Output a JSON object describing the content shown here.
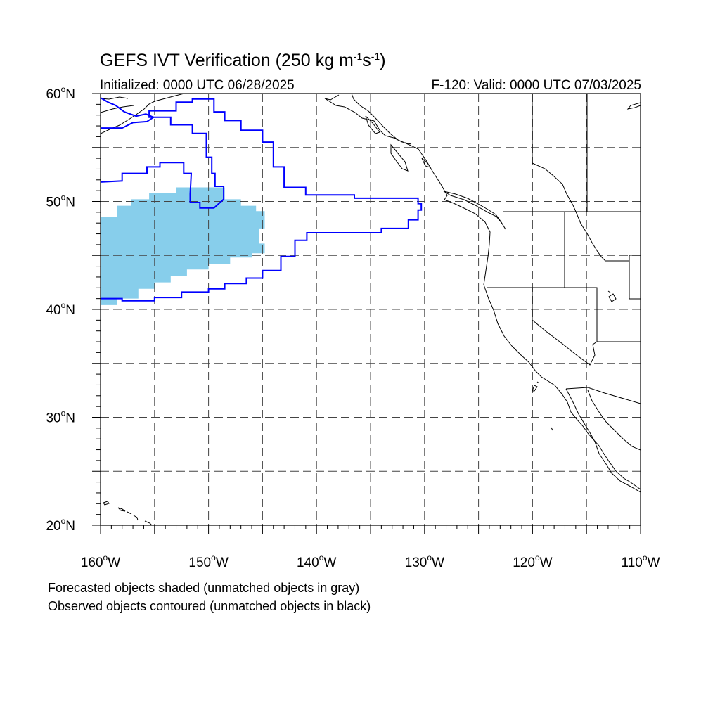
{
  "title": {
    "main": "GEFS IVT Verification (250 kg m",
    "exp1": "-1",
    "mid": "s",
    "exp2": "-1",
    "end": ")"
  },
  "initialized": "Initialized: 0000 UTC 06/28/2025",
  "valid": "F-120: Valid: 0000 UTC 07/03/2025",
  "notes": {
    "forecast": "Forecasted objects shaded (unmatched objects in gray)",
    "observed": "Observed objects contoured (unmatched objects in black)"
  },
  "axes": {
    "lon_labels": [
      "160",
      "150",
      "140",
      "130",
      "120",
      "110"
    ],
    "lon_values": [
      -160,
      -150,
      -140,
      -130,
      -120,
      -110
    ],
    "lon_suffix": "W",
    "lat_labels": [
      "60",
      "50",
      "40",
      "30",
      "20"
    ],
    "lat_values": [
      60,
      50,
      40,
      30,
      20
    ],
    "lat_suffix": "N",
    "degree": "o",
    "lon_range": [
      -160,
      -110
    ],
    "lat_range": [
      20,
      60
    ],
    "grid_lon": [
      -155,
      -150,
      -145,
      -140,
      -135,
      -130,
      -125,
      -120,
      -115
    ],
    "grid_lat": [
      55,
      50,
      45,
      40,
      35,
      30,
      25
    ]
  },
  "colors": {
    "forecast_fill": "#87ceeb",
    "observed_contour": "#0000ff",
    "coastline": "#000000"
  },
  "objects": {
    "forecast_shaded": [
      [
        -160,
        40.4
      ],
      [
        -158.5,
        40.4
      ],
      [
        -158.5,
        41
      ],
      [
        -156.5,
        41
      ],
      [
        -156.5,
        41.9
      ],
      [
        -155,
        41.9
      ],
      [
        -155,
        42.5
      ],
      [
        -153.5,
        42.5
      ],
      [
        -153.5,
        43.1
      ],
      [
        -152,
        43.1
      ],
      [
        -152,
        43.7
      ],
      [
        -150,
        43.7
      ],
      [
        -150,
        44.2
      ],
      [
        -148,
        44.2
      ],
      [
        -148,
        44.8
      ],
      [
        -146,
        44.8
      ],
      [
        -146,
        45.2
      ],
      [
        -144.8,
        45.2
      ],
      [
        -144.8,
        46.1
      ],
      [
        -145.3,
        46.1
      ],
      [
        -145.3,
        47.5
      ],
      [
        -144.8,
        47.5
      ],
      [
        -144.8,
        49.1
      ],
      [
        -145.6,
        49.1
      ],
      [
        -145.6,
        49.6
      ],
      [
        -147,
        49.6
      ],
      [
        -147,
        50.2
      ],
      [
        -148.5,
        50.2
      ],
      [
        -148.5,
        51.3
      ],
      [
        -153,
        51.3
      ],
      [
        -153,
        50.8
      ],
      [
        -155.5,
        50.8
      ],
      [
        -155.5,
        50.2
      ],
      [
        -157.2,
        50.2
      ],
      [
        -157.2,
        49.6
      ],
      [
        -158.5,
        49.6
      ],
      [
        -158.5,
        48.6
      ],
      [
        -160,
        48.6
      ]
    ],
    "observed_contours": [
      [
        [
          -160,
          41
        ],
        [
          -158,
          41
        ],
        [
          -158,
          40.8
        ],
        [
          -155,
          40.8
        ],
        [
          -155,
          41.1
        ],
        [
          -152.5,
          41.1
        ],
        [
          -152.5,
          41.6
        ],
        [
          -150,
          41.6
        ],
        [
          -150,
          41.9
        ],
        [
          -148.5,
          41.9
        ],
        [
          -148.5,
          42.4
        ],
        [
          -146.5,
          42.4
        ],
        [
          -146.5,
          42.9
        ],
        [
          -145,
          42.9
        ],
        [
          -145,
          43.6
        ],
        [
          -143.3,
          43.6
        ],
        [
          -143.3,
          44.9
        ],
        [
          -142,
          44.9
        ],
        [
          -142,
          46.4
        ],
        [
          -140.9,
          46.4
        ],
        [
          -140.9,
          47.1
        ],
        [
          -134,
          47.1
        ],
        [
          -134,
          47.5
        ],
        [
          -131.5,
          47.5
        ],
        [
          -131.5,
          48.3
        ],
        [
          -130.6,
          48.3
        ],
        [
          -130.6,
          49.2
        ],
        [
          -130.3,
          49.2
        ],
        [
          -130.3,
          49.8
        ],
        [
          -130.6,
          49.8
        ],
        [
          -130.6,
          50.3
        ],
        [
          -136.5,
          50.3
        ],
        [
          -136.5,
          50.6
        ],
        [
          -141,
          50.6
        ],
        [
          -141,
          51.3
        ],
        [
          -143,
          51.3
        ],
        [
          -143,
          53.2
        ],
        [
          -144,
          53.2
        ],
        [
          -144,
          55.5
        ],
        [
          -145,
          55.5
        ],
        [
          -145,
          56.6
        ],
        [
          -147,
          56.6
        ],
        [
          -147,
          57.5
        ],
        [
          -148.5,
          57.5
        ],
        [
          -148.5,
          58.3
        ],
        [
          -149.5,
          58.3
        ],
        [
          -149.5,
          59.5
        ],
        [
          -151.5,
          59.5
        ],
        [
          -151.5,
          59.2
        ],
        [
          -153,
          59.2
        ],
        [
          -153,
          58.4
        ],
        [
          -155.5,
          58.4
        ],
        [
          -155.5,
          57.8
        ],
        [
          -153.5,
          57.8
        ],
        [
          -153.5,
          57.1
        ],
        [
          -151.5,
          57.1
        ],
        [
          -151.5,
          56.3
        ],
        [
          -150.2,
          56.3
        ],
        [
          -150.2,
          54.1
        ],
        [
          -149.7,
          54.1
        ],
        [
          -149.7,
          52.6
        ],
        [
          -149.4,
          52.6
        ],
        [
          -149.4,
          51.4
        ],
        [
          -148.6,
          51.4
        ],
        [
          -148.6,
          50.2
        ],
        [
          -149.5,
          49.4
        ],
        [
          -150.8,
          49.4
        ],
        [
          -150.8,
          49.9
        ],
        [
          -151.7,
          49.9
        ],
        [
          -151.7,
          50.7
        ],
        [
          -151.6,
          52.6
        ],
        [
          -152.3,
          52.6
        ],
        [
          -152.3,
          53.6
        ],
        [
          -154.5,
          53.6
        ],
        [
          -154.5,
          53.2
        ],
        [
          -155.7,
          53.2
        ],
        [
          -155.7,
          52.6
        ],
        [
          -158,
          52.6
        ],
        [
          -158,
          51.9
        ],
        [
          -160,
          51.8
        ]
      ],
      [
        [
          -160,
          56.8
        ],
        [
          -158,
          56.8
        ],
        [
          -157,
          57.3
        ],
        [
          -155.7,
          57.4
        ],
        [
          -155.1,
          57.8
        ],
        [
          -155.8,
          58.1
        ],
        [
          -156.7,
          57.9
        ],
        [
          -157.8,
          58.3
        ],
        [
          -158.6,
          58.9
        ],
        [
          -159.3,
          59.2
        ],
        [
          -160,
          59.6
        ]
      ]
    ]
  }
}
